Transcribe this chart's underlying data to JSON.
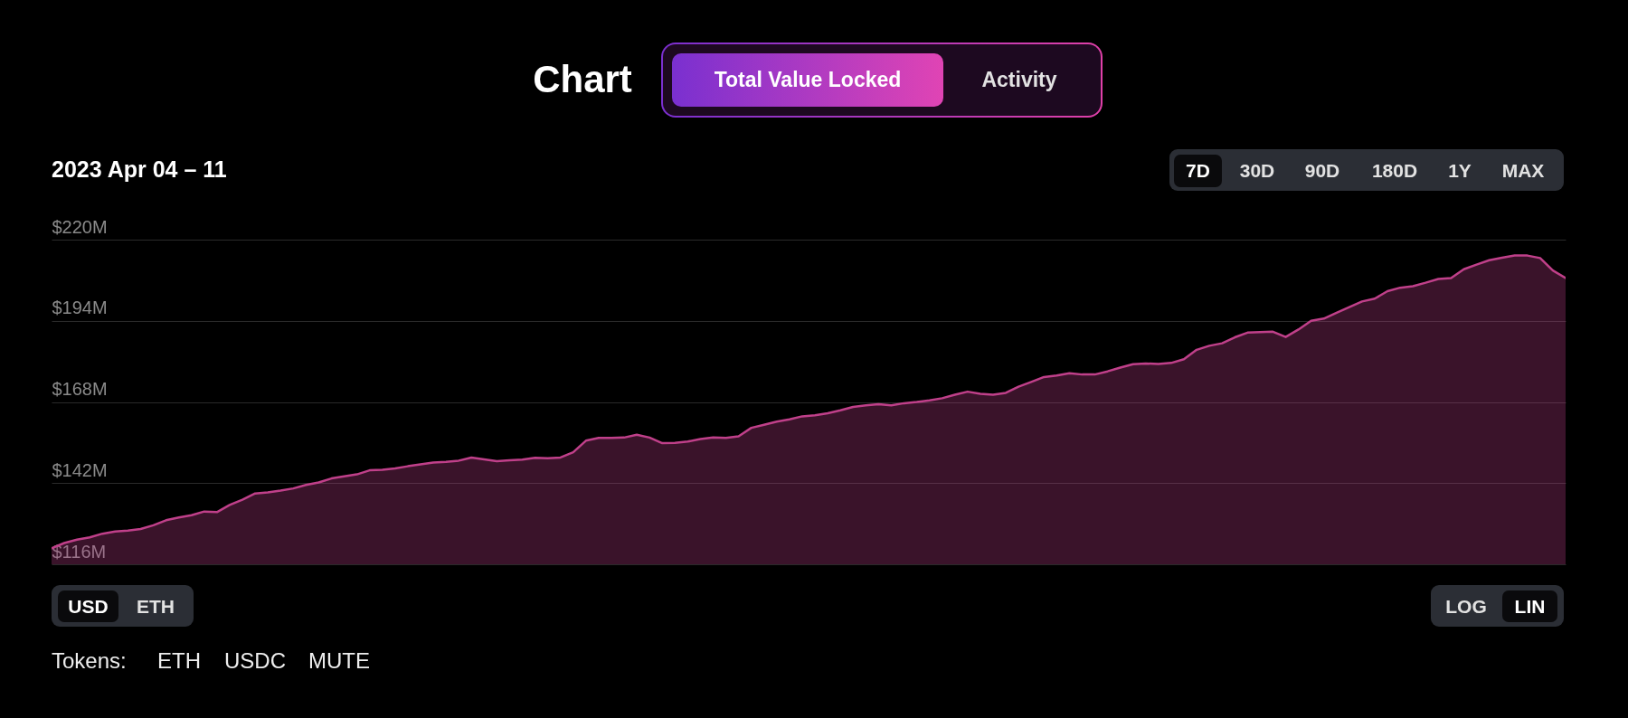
{
  "chart_data": {
    "type": "area",
    "title": "Chart",
    "subtitle": "2023 Apr 04 – 11",
    "annotations": [
      "Total Value Locked",
      "Activity",
      "7D",
      "30D",
      "90D",
      "180D",
      "1Y",
      "MAX",
      "USD",
      "ETH",
      "LOG",
      "LIN",
      "Tokens:",
      "ETH",
      "USDC",
      "MUTE"
    ],
    "categories": [
      null,
      null,
      null,
      null,
      null,
      null,
      null,
      null,
      null,
      null,
      null,
      null,
      null,
      null,
      null,
      null,
      null,
      null,
      null,
      null,
      null,
      null,
      null,
      null,
      null,
      null,
      null,
      null,
      null,
      null,
      null,
      null,
      null,
      null,
      null,
      null,
      null,
      null,
      null,
      null,
      null,
      null,
      null,
      null,
      null,
      null,
      null,
      null,
      null,
      null,
      null,
      null,
      null,
      null,
      null,
      null,
      null,
      null,
      null,
      null,
      null,
      null,
      null,
      null,
      null,
      null,
      null,
      null,
      null,
      null,
      null,
      null,
      null,
      null,
      null,
      null,
      null,
      null,
      null,
      null,
      null,
      null,
      null,
      null,
      null,
      null,
      null,
      null,
      null,
      null,
      null,
      null,
      null,
      null,
      null,
      null,
      null,
      null,
      null,
      null,
      null,
      null,
      null,
      null,
      null,
      null,
      null,
      null,
      null,
      null,
      null,
      null,
      null,
      null,
      null,
      null,
      null,
      null,
      null,
      null
    ],
    "values": [
      121.1,
      122.8,
      123.9,
      124.6,
      125.8,
      126.5,
      126.8,
      127.3,
      128.5,
      130.1,
      131.0,
      131.7,
      132.9,
      132.7,
      135.0,
      136.7,
      138.7,
      139.0,
      139.6,
      140.3,
      141.4,
      142.2,
      143.5,
      144.2,
      144.8,
      146.1,
      146.3,
      146.7,
      147.4,
      148.0,
      148.6,
      148.8,
      149.2,
      150.2,
      149.6,
      149.0,
      149.3,
      149.5,
      150.1,
      150.0,
      150.2,
      151.9,
      155.6,
      156.5,
      156.5,
      156.6,
      157.5,
      156.6,
      154.8,
      154.9,
      155.3,
      156.1,
      156.6,
      156.5,
      157.0,
      159.7,
      160.7,
      161.7,
      162.4,
      163.4,
      163.7,
      164.4,
      165.3,
      166.4,
      166.9,
      167.3,
      166.9,
      167.6,
      168.0,
      168.5,
      169.2,
      170.3,
      171.3,
      170.6,
      170.3,
      170.9,
      172.9,
      174.4,
      176.0,
      176.5,
      177.2,
      176.8,
      176.8,
      177.8,
      179.0,
      180.1,
      180.3,
      180.2,
      180.5,
      181.7,
      184.7,
      186.0,
      186.8,
      188.7,
      190.2,
      190.4,
      190.5,
      188.8,
      191.2,
      194.0,
      194.7,
      196.6,
      198.4,
      200.2,
      201.1,
      203.5,
      204.6,
      205.1,
      206.2,
      207.4,
      207.7,
      210.5,
      212.0,
      213.4,
      214.2,
      214.9,
      214.9,
      214.1,
      210.1,
      207.7
    ],
    "color": "#c0408a",
    "ylim": [
      116,
      220
    ],
    "yticks": [
      {
        "value": 116,
        "label": "$116M"
      },
      {
        "value": 142,
        "label": "$142M"
      },
      {
        "value": 168,
        "label": "$168M"
      },
      {
        "value": 194,
        "label": "$194M"
      },
      {
        "value": 220,
        "label": "$220M"
      }
    ],
    "grid": "y",
    "tick_labels": "y"
  }
}
